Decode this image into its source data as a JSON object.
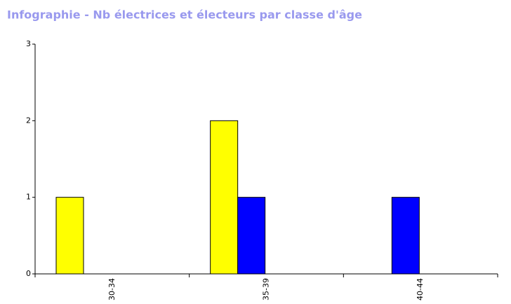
{
  "chart_data": {
    "type": "bar",
    "title": "Infographie - Nb électrices et électeurs par classe d'âge",
    "categories": [
      "30-34",
      "35-39",
      "40-44"
    ],
    "series": [
      {
        "color": "#ffff00",
        "values": [
          1,
          2,
          0
        ]
      },
      {
        "color": "#0000ff",
        "values": [
          0,
          1,
          1
        ]
      }
    ],
    "ylim": [
      0,
      3
    ],
    "yticks": [
      0,
      1,
      2,
      3
    ],
    "grid": false
  }
}
